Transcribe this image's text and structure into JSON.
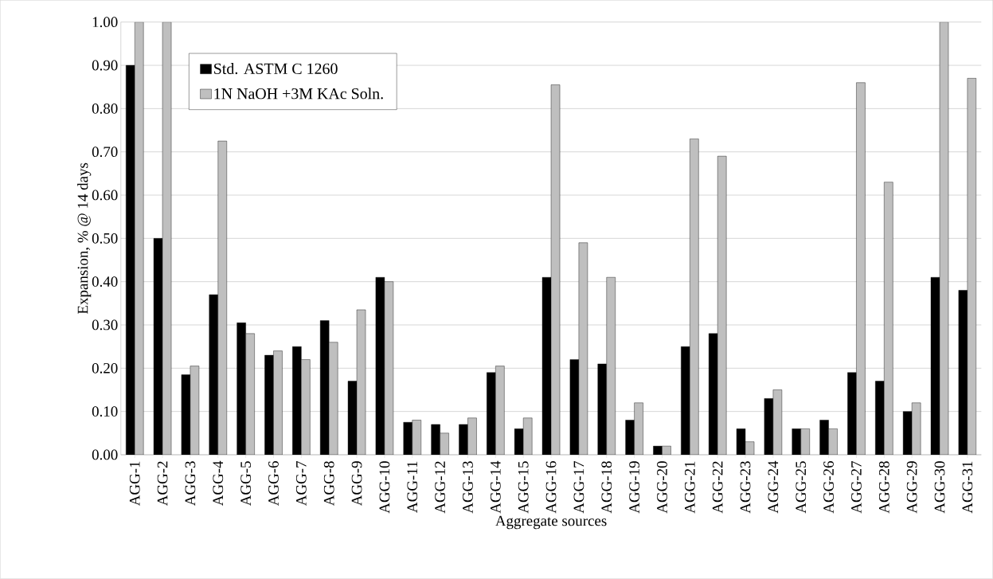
{
  "chart_data": {
    "type": "bar",
    "xlabel": "Aggregate sources",
    "ylabel": "Expansion, % @ 14 days",
    "categories": [
      "AGG-1",
      "AGG-2",
      "AGG-3",
      "AGG-4",
      "AGG-5",
      "AGG-6",
      "AGG-7",
      "AGG-8",
      "AGG-9",
      "AGG-10",
      "AGG-11",
      "AGG-12",
      "AGG-13",
      "AGG-14",
      "AGG-15",
      "AGG-16",
      "AGG-17",
      "AGG-18",
      "AGG-19",
      "AGG-20",
      "AGG-21",
      "AGG-22",
      "AGG-23",
      "AGG-24",
      "AGG-25",
      "AGG-26",
      "AGG-27",
      "AGG-28",
      "AGG-29",
      "AGG-30",
      "AGG-31"
    ],
    "series": [
      {
        "name": "Std. ASTM C 1260",
        "color": "#000000",
        "values": [
          0.9,
          0.5,
          0.185,
          0.37,
          0.305,
          0.23,
          0.25,
          0.31,
          0.17,
          0.41,
          0.075,
          0.07,
          0.07,
          0.19,
          0.06,
          0.41,
          0.22,
          0.21,
          0.08,
          0.02,
          0.25,
          0.28,
          0.06,
          0.13,
          0.06,
          0.08,
          0.19,
          0.17,
          0.1,
          0.41,
          0.38
        ]
      },
      {
        "name": "1N NaOH +3M KAc Soln.",
        "color": "#bfbfbf",
        "values": [
          1.0,
          1.0,
          0.205,
          0.725,
          0.28,
          0.24,
          0.22,
          0.26,
          0.335,
          0.4,
          0.08,
          0.05,
          0.085,
          0.205,
          0.085,
          0.855,
          0.49,
          0.41,
          0.12,
          0.02,
          0.73,
          0.69,
          0.03,
          0.15,
          0.06,
          0.06,
          0.86,
          0.63,
          0.12,
          1.0,
          0.87
        ]
      }
    ],
    "ylim": [
      0,
      1
    ],
    "yticks": [
      {
        "value": 0,
        "label": "0.00"
      },
      {
        "value": 0.1,
        "label": "0.10"
      },
      {
        "value": 0.2,
        "label": "0.20"
      },
      {
        "value": 0.3,
        "label": "0.30"
      },
      {
        "value": 0.4,
        "label": "0.40"
      },
      {
        "value": 0.5,
        "label": "0.50"
      },
      {
        "value": 0.6,
        "label": "0.60"
      },
      {
        "value": 0.7,
        "label": "0.70"
      },
      {
        "value": 0.8,
        "label": "0.80"
      },
      {
        "value": 0.9,
        "label": "0.90"
      },
      {
        "value": 1,
        "label": "1.00"
      }
    ],
    "grid": "y",
    "legend": "top left"
  }
}
